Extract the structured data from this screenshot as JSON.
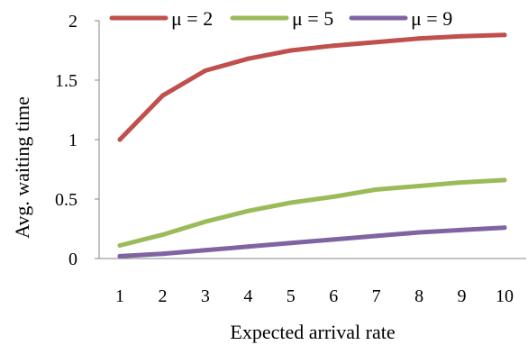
{
  "chart_data": {
    "type": "line",
    "xlabel": "Expected arrival rate",
    "ylabel": "Avg. waiting time",
    "x": [
      1,
      2,
      3,
      4,
      5,
      6,
      7,
      8,
      9,
      10
    ],
    "x_tick_labels": [
      "1",
      "2",
      "3",
      "4",
      "5",
      "6",
      "7",
      "8",
      "9",
      "10"
    ],
    "y_ticks": [
      0,
      0.5,
      1,
      1.5,
      2
    ],
    "y_tick_labels": [
      "0",
      "0.5",
      "1",
      "1.5",
      "2"
    ],
    "ylim": [
      0,
      2
    ],
    "grid": false,
    "legend_position": "top",
    "series": [
      {
        "name": "μ = 2",
        "color": "#c0504d",
        "values": [
          1.0,
          1.37,
          1.58,
          1.68,
          1.75,
          1.79,
          1.82,
          1.85,
          1.87,
          1.88
        ]
      },
      {
        "name": "μ = 5",
        "color": "#9bbb59",
        "values": [
          0.11,
          0.2,
          0.31,
          0.4,
          0.47,
          0.52,
          0.58,
          0.61,
          0.64,
          0.66
        ]
      },
      {
        "name": "μ = 9",
        "color": "#8064a2",
        "values": [
          0.02,
          0.04,
          0.07,
          0.1,
          0.13,
          0.16,
          0.19,
          0.22,
          0.24,
          0.26
        ]
      }
    ]
  }
}
